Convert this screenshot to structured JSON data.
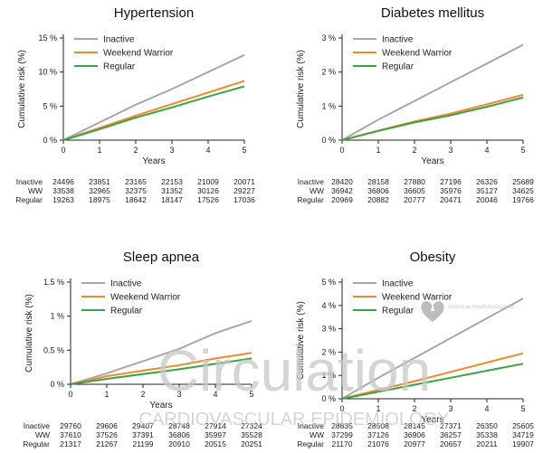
{
  "chart_data": [
    {
      "type": "line",
      "title": "Hypertension",
      "xlabel": "Years",
      "ylabel": "Cumulative risk (%)",
      "xlim": [
        0,
        5
      ],
      "ylim": [
        0,
        15
      ],
      "x_ticks": [
        "0",
        "1",
        "2",
        "3",
        "4",
        "5"
      ],
      "y_ticks": [
        "0 %",
        "5 %",
        "10 %",
        "15 %"
      ],
      "legend_position": "top-left",
      "series": [
        {
          "name": "Inactive",
          "color": "#a8a8a8",
          "x": [
            0,
            1,
            2,
            3,
            4,
            5
          ],
          "values": [
            0,
            2.6,
            5.2,
            7.5,
            10.0,
            12.5
          ]
        },
        {
          "name": "Weekend Warrior",
          "color": "#f08a2c",
          "x": [
            0,
            1,
            2,
            3,
            4,
            5
          ],
          "values": [
            0,
            1.8,
            3.6,
            5.3,
            7.0,
            8.7
          ]
        },
        {
          "name": "Regular",
          "color": "#3aa346",
          "x": [
            0,
            1,
            2,
            3,
            4,
            5
          ],
          "values": [
            0,
            1.6,
            3.3,
            4.8,
            6.4,
            7.9
          ]
        }
      ],
      "risk_table": {
        "times": [
          "0",
          "1",
          "2",
          "3",
          "4",
          "5"
        ],
        "rows": [
          {
            "label": "Inactive",
            "values": [
              "24496",
              "23851",
              "23165",
              "22153",
              "21009",
              "20071"
            ]
          },
          {
            "label": "WW",
            "values": [
              "33538",
              "32965",
              "32375",
              "31352",
              "30126",
              "29227"
            ]
          },
          {
            "label": "Regular",
            "values": [
              "19263",
              "18975",
              "18642",
              "18147",
              "17526",
              "17036"
            ]
          }
        ]
      }
    },
    {
      "type": "line",
      "title": "Diabetes mellitus",
      "xlabel": "Years",
      "ylabel": "Cumulative risk (%)",
      "xlim": [
        0,
        5
      ],
      "ylim": [
        0,
        3
      ],
      "x_ticks": [
        "0",
        "1",
        "2",
        "3",
        "4",
        "5"
      ],
      "y_ticks": [
        "0 %",
        "1 %",
        "2 %",
        "3 %"
      ],
      "legend_position": "top-left",
      "series": [
        {
          "name": "Inactive",
          "color": "#a8a8a8",
          "x": [
            0,
            1,
            2,
            3,
            4,
            5
          ],
          "values": [
            0,
            0.6,
            1.15,
            1.7,
            2.25,
            2.8
          ]
        },
        {
          "name": "Weekend Warrior",
          "color": "#f08a2c",
          "x": [
            0,
            1,
            2,
            3,
            4,
            5
          ],
          "values": [
            0,
            0.28,
            0.55,
            0.78,
            1.05,
            1.33
          ]
        },
        {
          "name": "Regular",
          "color": "#3aa346",
          "x": [
            0,
            1,
            2,
            3,
            4,
            5
          ],
          "values": [
            0,
            0.27,
            0.52,
            0.73,
            0.98,
            1.25
          ]
        }
      ],
      "risk_table": {
        "times": [
          "0",
          "1",
          "2",
          "3",
          "4",
          "5"
        ],
        "rows": [
          {
            "label": "Inactive",
            "values": [
              "28420",
              "28158",
              "27880",
              "27196",
              "26326",
              "25689"
            ]
          },
          {
            "label": "WW",
            "values": [
              "36942",
              "36806",
              "36605",
              "35976",
              "35127",
              "34625"
            ]
          },
          {
            "label": "Regular",
            "values": [
              "20969",
              "20882",
              "20777",
              "20471",
              "20046",
              "19766"
            ]
          }
        ]
      }
    },
    {
      "type": "line",
      "title": "Sleep apnea",
      "xlabel": "Years",
      "ylabel": "Cumulative risk (%)",
      "xlim": [
        0,
        5
      ],
      "ylim": [
        0,
        1.5
      ],
      "x_ticks": [
        "0",
        "1",
        "2",
        "3",
        "4",
        "5"
      ],
      "y_ticks": [
        "0 %",
        "0.5 %",
        "1 %",
        "1.5 %"
      ],
      "legend_position": "top-left",
      "series": [
        {
          "name": "Inactive",
          "color": "#a8a8a8",
          "x": [
            0,
            1,
            2,
            3,
            4,
            5
          ],
          "values": [
            0,
            0.16,
            0.34,
            0.52,
            0.75,
            0.93
          ]
        },
        {
          "name": "Weekend Warrior",
          "color": "#f08a2c",
          "x": [
            0,
            1,
            2,
            3,
            4,
            5
          ],
          "values": [
            0,
            0.12,
            0.2,
            0.28,
            0.38,
            0.46
          ]
        },
        {
          "name": "Regular",
          "color": "#3aa346",
          "x": [
            0,
            1,
            2,
            3,
            4,
            5
          ],
          "values": [
            0,
            0.08,
            0.15,
            0.22,
            0.3,
            0.38
          ]
        }
      ],
      "risk_table": {
        "times": [
          "0",
          "1",
          "2",
          "3",
          "4",
          "5"
        ],
        "rows": [
          {
            "label": "Inactive",
            "values": [
              "29760",
              "29606",
              "29407",
              "28748",
              "27914",
              "27324"
            ]
          },
          {
            "label": "WW",
            "values": [
              "37610",
              "37526",
              "37391",
              "36806",
              "35997",
              "35528"
            ]
          },
          {
            "label": "Regular",
            "values": [
              "21317",
              "21267",
              "21199",
              "20910",
              "20515",
              "20251"
            ]
          }
        ]
      }
    },
    {
      "type": "line",
      "title": "Obesity",
      "xlabel": "Years",
      "ylabel": "Cumulative risk (%)",
      "xlim": [
        0,
        5
      ],
      "ylim": [
        0,
        5
      ],
      "x_ticks": [
        "0",
        "1",
        "2",
        "3",
        "4",
        "5"
      ],
      "y_ticks": [
        "0 %",
        "1 %",
        "2 %",
        "3 %",
        "4 %",
        "5 %"
      ],
      "legend_position": "top-left",
      "series": [
        {
          "name": "Inactive",
          "color": "#a8a8a8",
          "x": [
            0,
            1,
            2,
            3,
            4,
            5
          ],
          "values": [
            0,
            0.9,
            1.75,
            2.6,
            3.45,
            4.3
          ]
        },
        {
          "name": "Weekend Warrior",
          "color": "#f08a2c",
          "x": [
            0,
            1,
            2,
            3,
            4,
            5
          ],
          "values": [
            0,
            0.38,
            0.75,
            1.15,
            1.55,
            1.95
          ]
        },
        {
          "name": "Regular",
          "color": "#3aa346",
          "x": [
            0,
            1,
            2,
            3,
            4,
            5
          ],
          "values": [
            0,
            0.3,
            0.6,
            0.9,
            1.2,
            1.5
          ]
        }
      ],
      "risk_table": {
        "times": [
          "0",
          "1",
          "2",
          "3",
          "4",
          "5"
        ],
        "rows": [
          {
            "label": "Inactive",
            "values": [
              "28835",
              "28508",
              "28145",
              "27371",
              "26350",
              "25605"
            ]
          },
          {
            "label": "WW",
            "values": [
              "37299",
              "37126",
              "36906",
              "36257",
              "35338",
              "34719"
            ]
          },
          {
            "label": "Regular",
            "values": [
              "21170",
              "21076",
              "20977",
              "20657",
              "20211",
              "19907"
            ]
          }
        ]
      }
    }
  ],
  "watermark": {
    "main_text": "Circulation",
    "sub_text": "CARDIOVASCULAR EPIDEMIOLOGY",
    "logo_text": "American Heart Association"
  }
}
